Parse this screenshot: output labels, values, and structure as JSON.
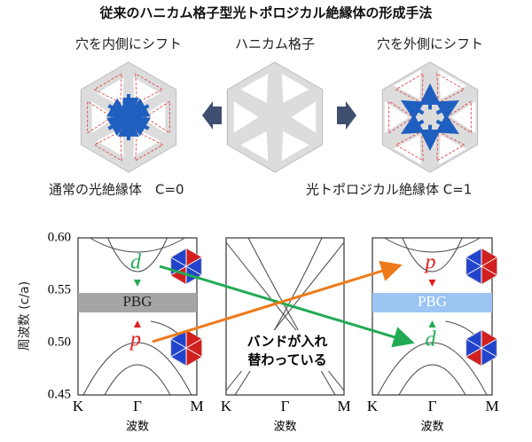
{
  "title": "従来のハニカム格子型光トポロジカル絶縁体の形成手法",
  "top": {
    "labels": [
      "穴を内側にシフト",
      "ハニカム格子",
      "穴を外側にシフト"
    ],
    "results": [
      "通常の光絶縁体　C=0",
      "光トポロジカル絶縁体 C=1"
    ]
  },
  "plot": {
    "y_label": "周波数 (c/a)",
    "y_ticks": [
      "0.60",
      "0.55",
      "0.50",
      "0.45"
    ],
    "panels": [
      {
        "x_ticks": [
          "K",
          "Γ",
          "M"
        ],
        "x_label": "波数"
      },
      {
        "x_ticks": [
          "K",
          "Γ",
          "M"
        ],
        "x_label": "波数"
      },
      {
        "x_ticks": [
          "K",
          "Γ",
          "M"
        ],
        "x_label": "波数"
      }
    ],
    "gap_label": "PBG",
    "left_bands": {
      "upper": "d",
      "lower": "p"
    },
    "right_bands": {
      "upper": "p",
      "lower": "d"
    },
    "note": [
      "バンドが入れ",
      "替わっている"
    ]
  }
}
